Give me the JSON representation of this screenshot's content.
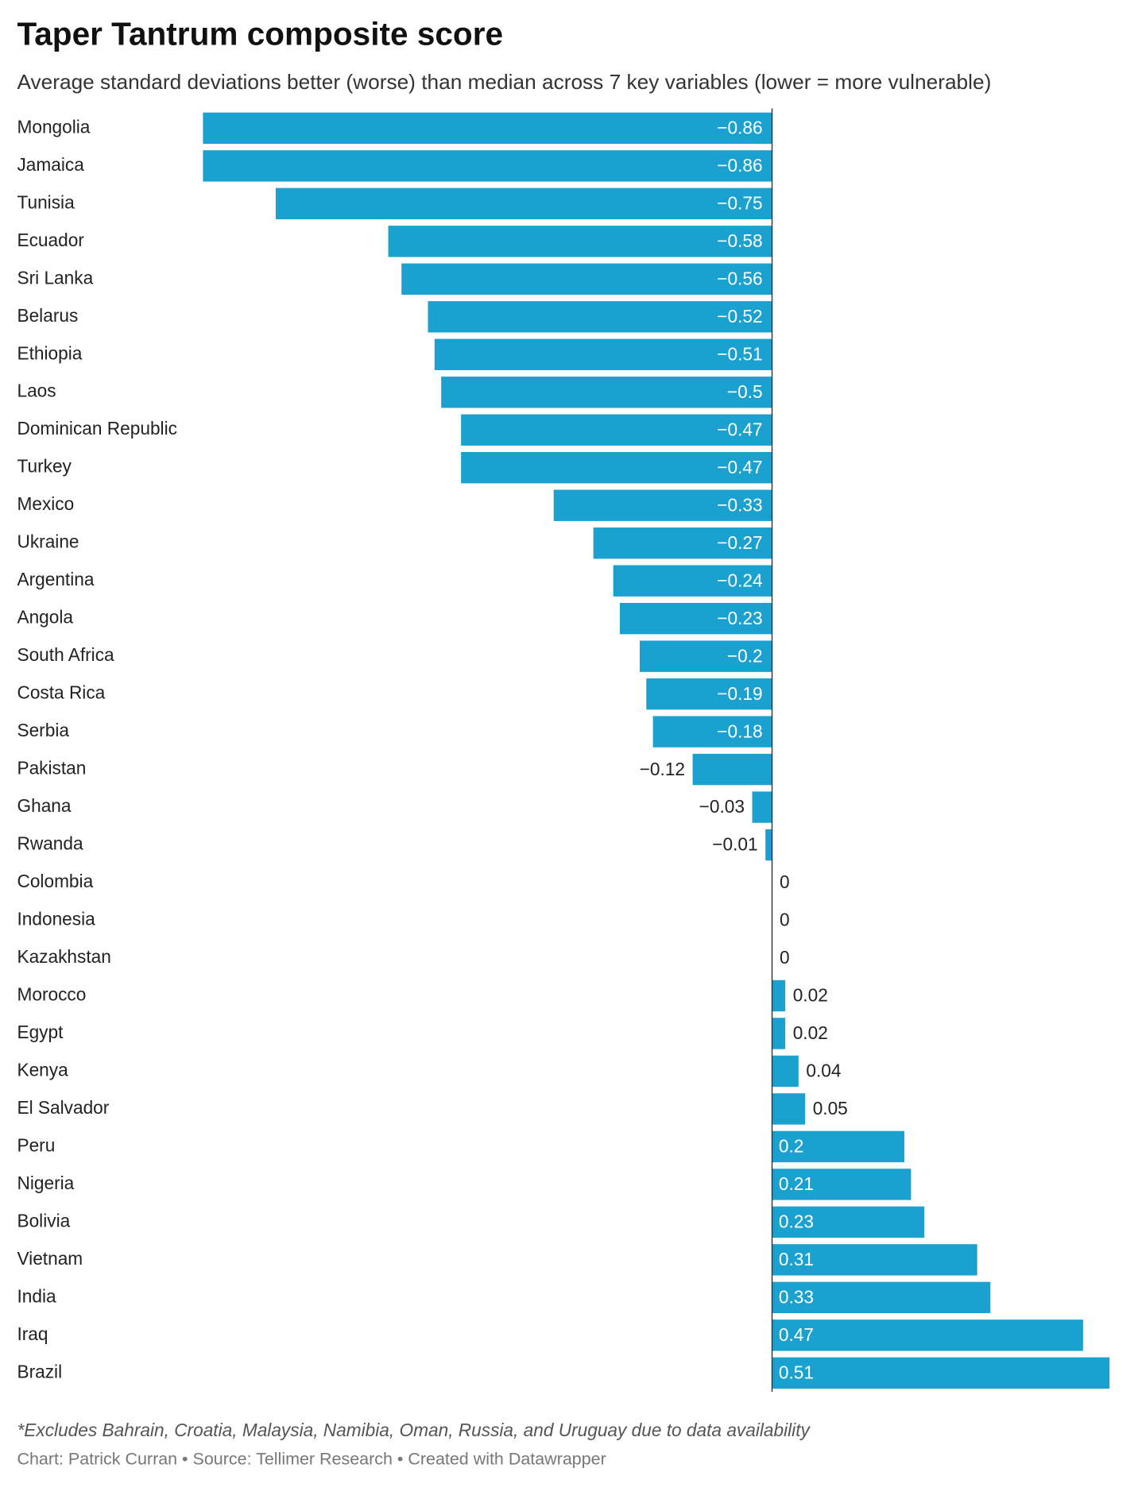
{
  "chart_data": {
    "type": "bar",
    "orientation": "horizontal",
    "title": "Taper Tantrum composite score",
    "subtitle": "Average standard deviations better (worse) than median across 7 key variables (lower = more vulnerable)",
    "note": "*Excludes Bahrain, Croatia, Malaysia, Namibia, Oman, Russia, and Uruguay due to data availability",
    "credit": "Chart: Patrick Curran • Source: Tellimer Research • Created with Datawrapper",
    "categories": [
      "Mongolia",
      "Jamaica",
      "Tunisia",
      "Ecuador",
      "Sri Lanka",
      "Belarus",
      "Ethiopia",
      "Laos",
      "Dominican Republic",
      "Turkey",
      "Mexico",
      "Ukraine",
      "Argentina",
      "Angola",
      "South Africa",
      "Costa Rica",
      "Serbia",
      "Pakistan",
      "Ghana",
      "Rwanda",
      "Colombia",
      "Indonesia",
      "Kazakhstan",
      "Morocco",
      "Egypt",
      "Kenya",
      "El Salvador",
      "Peru",
      "Nigeria",
      "Bolivia",
      "Vietnam",
      "India",
      "Iraq",
      "Brazil"
    ],
    "values": [
      -0.86,
      -0.86,
      -0.75,
      -0.58,
      -0.56,
      -0.52,
      -0.51,
      -0.5,
      -0.47,
      -0.47,
      -0.33,
      -0.27,
      -0.24,
      -0.23,
      -0.2,
      -0.19,
      -0.18,
      -0.12,
      -0.03,
      -0.01,
      0,
      0,
      0,
      0.02,
      0.02,
      0.04,
      0.05,
      0.2,
      0.21,
      0.23,
      0.31,
      0.33,
      0.47,
      0.51
    ],
    "value_labels": [
      "−0.86",
      "−0.86",
      "−0.75",
      "−0.58",
      "−0.56",
      "−0.52",
      "−0.51",
      "−0.5",
      "−0.47",
      "−0.47",
      "−0.33",
      "−0.27",
      "−0.24",
      "−0.23",
      "−0.2",
      "−0.19",
      "−0.18",
      "−0.12",
      "−0.03",
      "−0.01",
      "0",
      "0",
      "0",
      "0.02",
      "0.02",
      "0.04",
      "0.05",
      "0.2",
      "0.21",
      "0.23",
      "0.31",
      "0.33",
      "0.47",
      "0.51"
    ],
    "color": "#1aa1cf",
    "xlim": [
      -0.86,
      0.51
    ]
  }
}
